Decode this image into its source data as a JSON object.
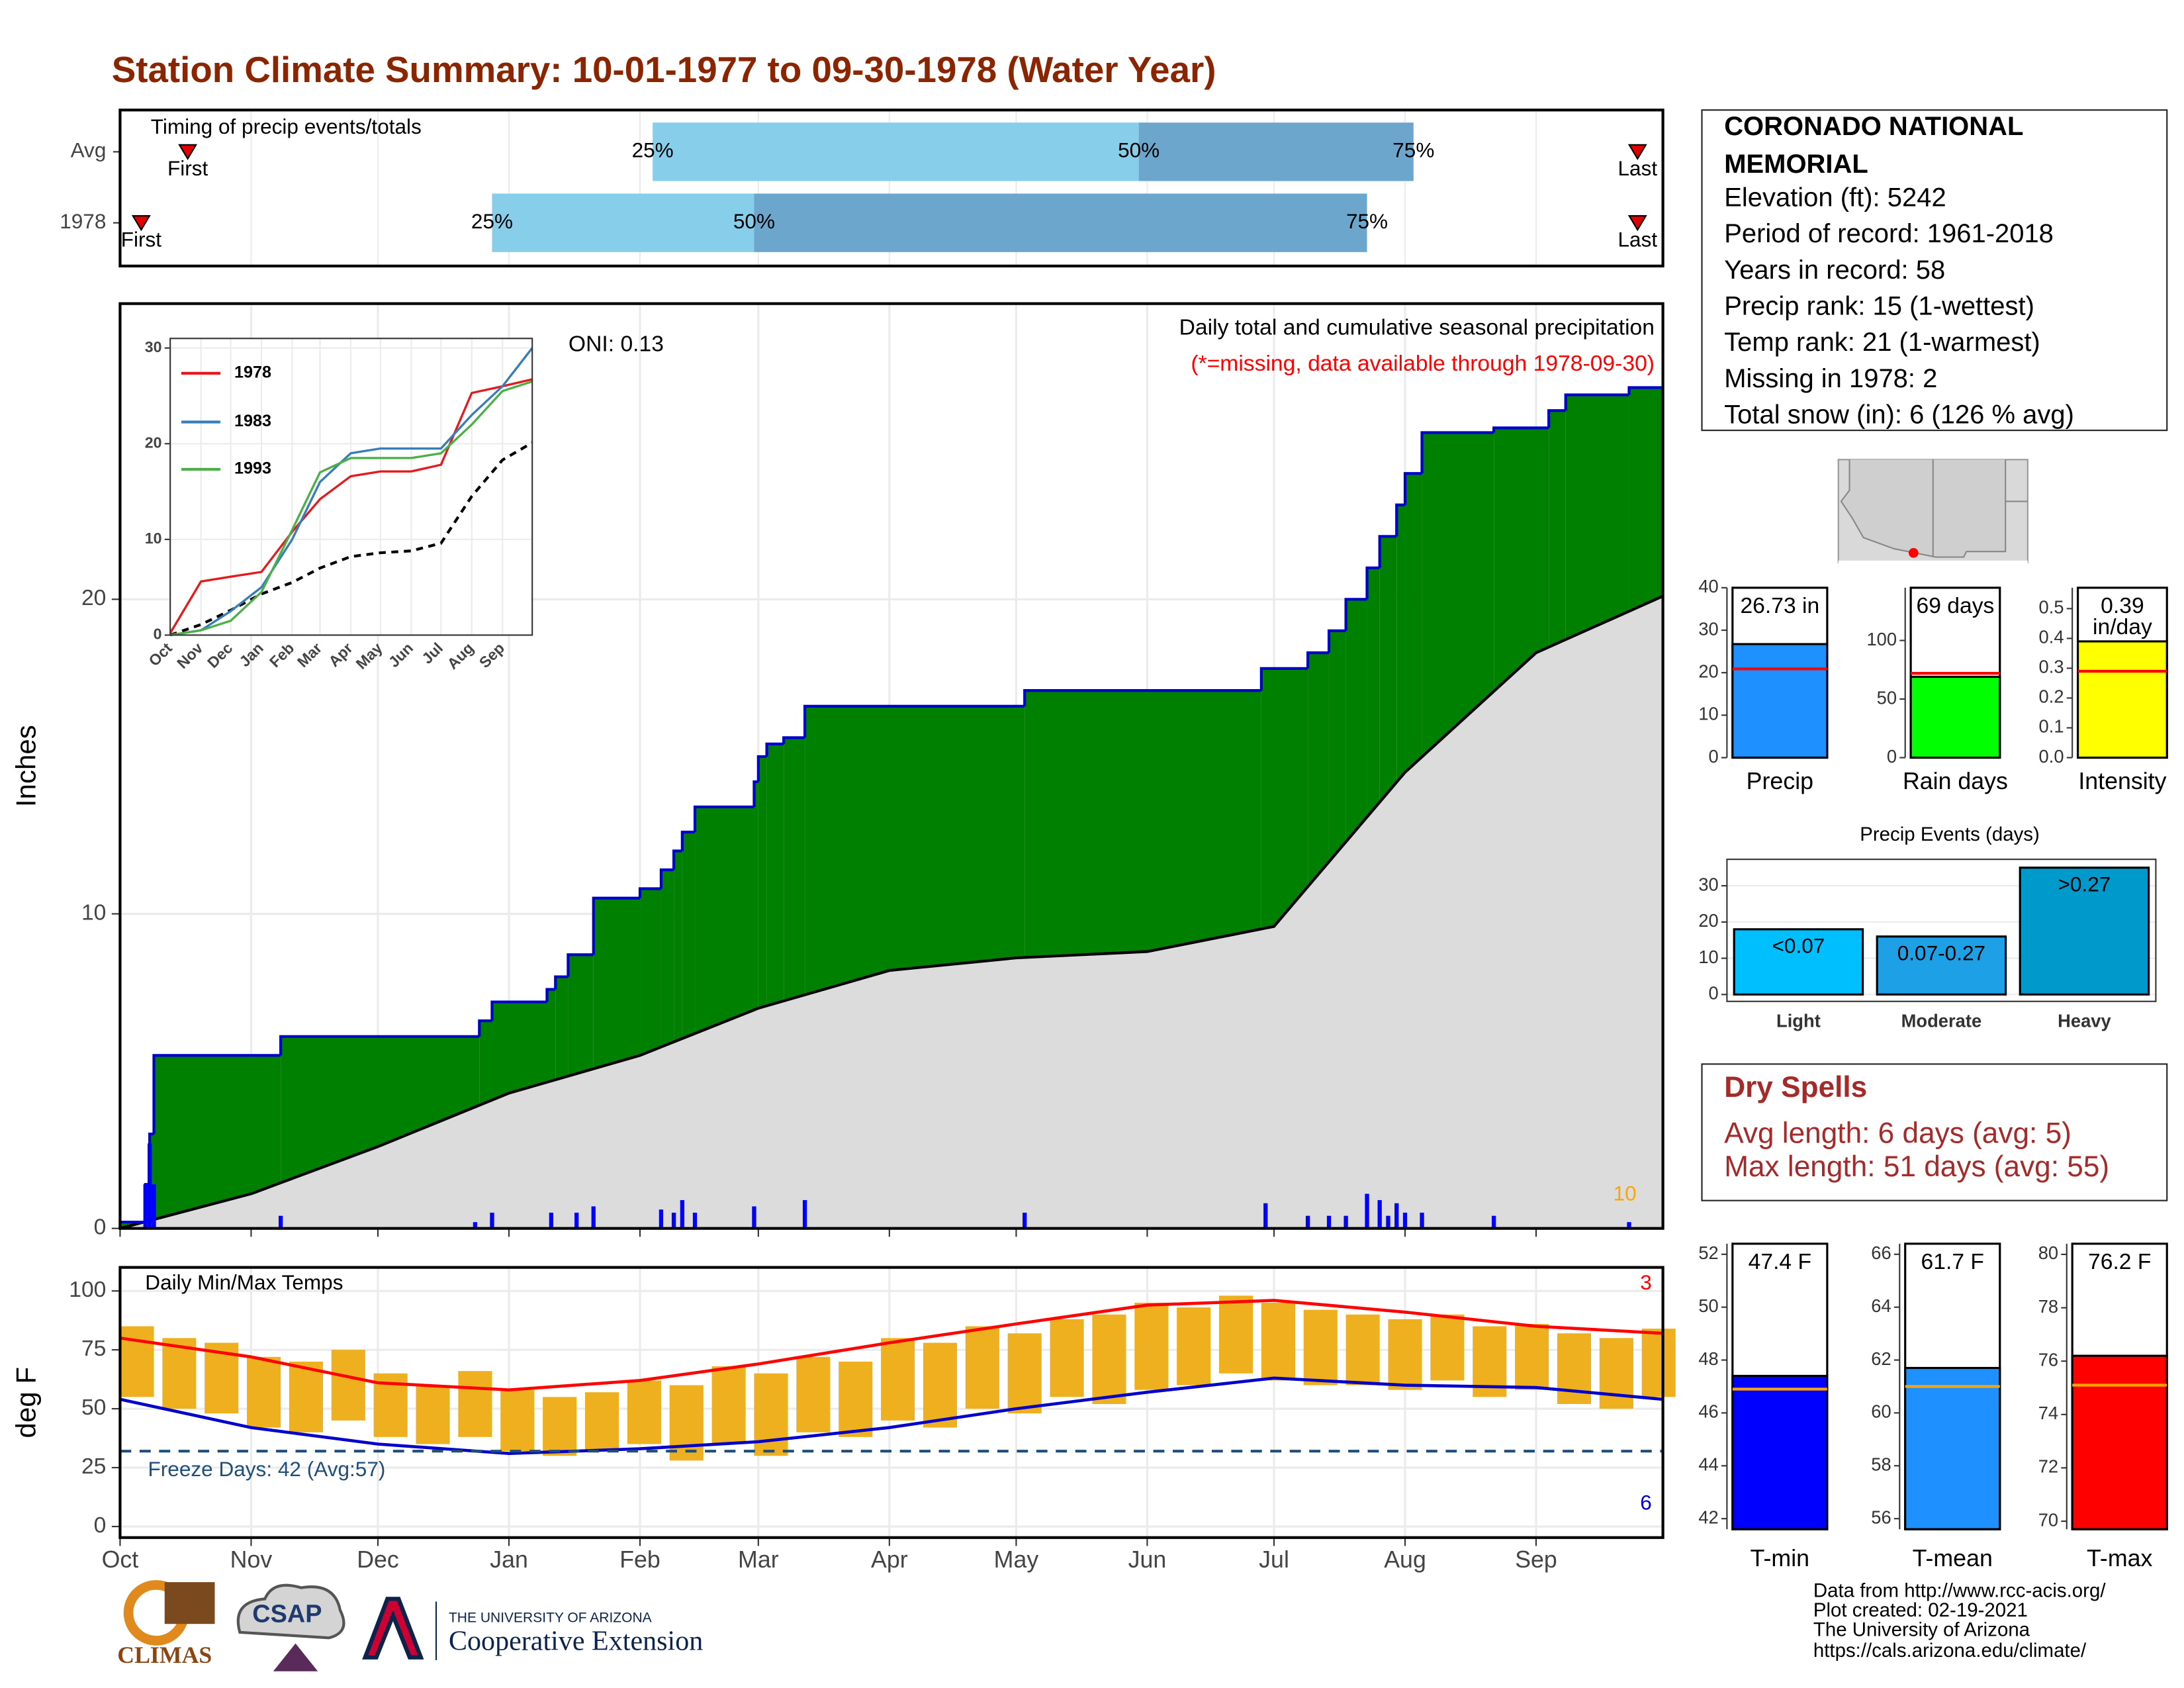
{
  "title": "Station Climate Summary: 10-01-1977 to 09-30-1978 (Water Year)",
  "chart_data": [
    {
      "type": "timing",
      "label": "Timing of precip events/totals",
      "xlim": [
        0,
        365
      ],
      "rows": [
        {
          "name": "Avg",
          "first": 16,
          "last": 359,
          "quartiles": [
            126,
            241,
            306
          ]
        },
        {
          "name": "1978",
          "first": 5,
          "last": 359,
          "quartiles": [
            88,
            150,
            295
          ]
        }
      ],
      "quartile_labels": [
        "25%",
        "50%",
        "75%"
      ],
      "first_label": "First",
      "last_label": "Last",
      "colors": [
        "#87ceeb",
        "#6ca6cd"
      ],
      "marker_color": "#e00000"
    },
    {
      "type": "cumulative_precip",
      "title": "Daily total and cumulative seasonal precipitation",
      "subtitle": "(*=missing, data available through 1978-09-30)",
      "annotation": "ONI: 0.13",
      "corner_label": "10",
      "ylabel": "Inches",
      "xlim": [
        0,
        365
      ],
      "ylim": [
        0,
        29.4
      ],
      "yticks": [
        0,
        10,
        20
      ],
      "grid": true,
      "cumulative": {
        "color": "#008000",
        "edge_color": "#0000cc",
        "x": [
          0,
          6,
          7,
          8,
          38,
          85,
          88,
          101,
          103,
          106,
          112,
          123,
          128,
          131,
          133,
          136,
          150,
          151,
          153,
          157,
          162,
          214,
          270,
          281,
          286,
          290,
          295,
          298,
          302,
          304,
          308,
          325,
          338,
          342,
          357,
          365
        ],
        "values": [
          0.2,
          1.4,
          3.0,
          5.5,
          6.1,
          6.6,
          7.2,
          7.6,
          8.0,
          8.7,
          10.5,
          10.8,
          11.4,
          12.0,
          12.6,
          13.4,
          14.2,
          15.0,
          15.4,
          15.6,
          16.6,
          17.1,
          17.8,
          18.3,
          19.0,
          20.0,
          21.0,
          22.0,
          23.0,
          24.0,
          25.3,
          25.45,
          26.0,
          26.5,
          26.73,
          26.73
        ]
      },
      "average": {
        "color": "#dcdcdc",
        "line_color": "#000000",
        "x": [
          0,
          31,
          61,
          92,
          123,
          151,
          182,
          212,
          243,
          273,
          304,
          335,
          365
        ],
        "values": [
          0,
          1.1,
          2.6,
          4.3,
          5.5,
          7.0,
          8.2,
          8.6,
          8.8,
          9.6,
          14.5,
          18.3,
          20.1
        ]
      },
      "daily": {
        "color": "#0000ff",
        "x": [
          6,
          7,
          8,
          38,
          84,
          88,
          102,
          108,
          112,
          128,
          131,
          133,
          136,
          150,
          162,
          214,
          271,
          281,
          286,
          290,
          295,
          298,
          300,
          302,
          304,
          308,
          325,
          357
        ],
        "values": [
          1.4,
          2.7,
          1.4,
          0.4,
          0.2,
          0.5,
          0.5,
          0.5,
          0.7,
          0.6,
          0.5,
          0.9,
          0.5,
          0.7,
          0.9,
          0.5,
          0.8,
          0.4,
          0.4,
          0.4,
          1.1,
          0.9,
          0.4,
          0.8,
          0.5,
          0.5,
          0.4,
          0.2
        ]
      }
    },
    {
      "type": "line",
      "xlim": [
        0,
        365
      ],
      "ylim": [
        0,
        31
      ],
      "yticks": [
        0,
        10,
        20,
        30
      ],
      "xticks": [
        {
          "value": 0,
          "label": "Oct"
        },
        {
          "value": 31,
          "label": "Nov"
        },
        {
          "value": 61,
          "label": "Dec"
        },
        {
          "value": 92,
          "label": "Jan"
        },
        {
          "value": 123,
          "label": "Feb"
        },
        {
          "value": 151,
          "label": "Mar"
        },
        {
          "value": 182,
          "label": "Apr"
        },
        {
          "value": 212,
          "label": "May"
        },
        {
          "value": 243,
          "label": "Jun"
        },
        {
          "value": 273,
          "label": "Jul"
        },
        {
          "value": 304,
          "label": "Aug"
        },
        {
          "value": 335,
          "label": "Sep"
        }
      ],
      "x": [
        0,
        31,
        61,
        92,
        123,
        151,
        182,
        212,
        243,
        273,
        304,
        335,
        365
      ],
      "series": [
        {
          "name": "1978",
          "color": "#e41a1c",
          "values": [
            0.2,
            5.6,
            6.1,
            6.6,
            10.8,
            14.2,
            16.6,
            17.1,
            17.1,
            17.8,
            25.3,
            26.0,
            26.73
          ]
        },
        {
          "name": "1983",
          "color": "#377eb8",
          "values": [
            0,
            0.5,
            2.5,
            5.0,
            10.0,
            16.0,
            19.0,
            19.5,
            19.5,
            19.5,
            23.0,
            26.0,
            30.0
          ]
        },
        {
          "name": "1993",
          "color": "#4daf4a",
          "values": [
            0,
            0.5,
            1.5,
            4.5,
            11.0,
            17.0,
            18.5,
            18.5,
            18.5,
            19.0,
            22.0,
            25.5,
            26.5
          ]
        }
      ],
      "average": {
        "color": "#000000",
        "dashed": true,
        "values": [
          0,
          1.1,
          2.6,
          4.3,
          5.5,
          7.0,
          8.2,
          8.6,
          8.8,
          9.6,
          14.5,
          18.3,
          20.1
        ]
      }
    },
    {
      "type": "summary_bar",
      "label": "Precip",
      "value": 26.73,
      "value_label": "26.73 in",
      "average": 20.9,
      "color": "#1e90ff",
      "average_color": "#ff0000",
      "ylim": [
        0,
        40
      ],
      "yticks": [
        0,
        10,
        20,
        30,
        40
      ]
    },
    {
      "type": "summary_bar",
      "label": "Rain days",
      "value": 69,
      "value_label": "69 days",
      "average": 72,
      "color": "#00ff00",
      "average_color": "#ff0000",
      "ylim": [
        0,
        145
      ],
      "yticks": [
        0,
        50,
        100
      ]
    },
    {
      "type": "summary_bar",
      "label": "Intensity",
      "value": 0.39,
      "value_label": "0.39",
      "unit_label": "in/day",
      "average": 0.29,
      "color": "#ffff00",
      "average_color": "#ff0000",
      "ylim": [
        0,
        0.57
      ],
      "yticks": [
        {
          "value": 0,
          "label": "0.0"
        },
        0.1,
        0.2,
        0.3,
        0.4,
        0.5
      ]
    },
    {
      "type": "bar",
      "title": "Precip Events (days)",
      "categories": [
        "Light",
        "Moderate",
        "Heavy"
      ],
      "values": [
        18,
        16,
        35
      ],
      "bar_labels": [
        "<0.07",
        "0.07-0.27",
        ">0.27"
      ],
      "colors": [
        "#00bfff",
        "#1ea0e6",
        "#0099cc"
      ],
      "ylim": [
        -1.9,
        37.3
      ],
      "yticks": [
        0,
        10,
        20,
        30
      ],
      "grid": true
    },
    {
      "type": "temperature",
      "label": "Daily Min/Max Temps",
      "ylabel": "deg F",
      "xlim": [
        0,
        365
      ],
      "ylim": [
        -4.7,
        110
      ],
      "yticks": [
        0,
        25,
        50,
        75,
        100
      ],
      "grid": true,
      "xticks": [
        {
          "value": 0,
          "label": "Oct"
        },
        {
          "value": 31,
          "label": "Nov"
        },
        {
          "value": 61,
          "label": "Dec"
        },
        {
          "value": 92,
          "label": "Jan"
        },
        {
          "value": 123,
          "label": "Feb"
        },
        {
          "value": 151,
          "label": "Mar"
        },
        {
          "value": 182,
          "label": "Apr"
        },
        {
          "value": 212,
          "label": "May"
        },
        {
          "value": 243,
          "label": "Jun"
        },
        {
          "value": 273,
          "label": "Jul"
        },
        {
          "value": 304,
          "label": "Aug"
        },
        {
          "value": 335,
          "label": "Sep"
        }
      ],
      "x": [
        0,
        10,
        20,
        30,
        40,
        50,
        60,
        70,
        80,
        90,
        100,
        110,
        120,
        130,
        140,
        150,
        160,
        170,
        180,
        190,
        200,
        210,
        220,
        230,
        240,
        250,
        260,
        270,
        280,
        290,
        300,
        310,
        320,
        330,
        340,
        350,
        360
      ],
      "max": [
        85,
        80,
        78,
        72,
        70,
        75,
        65,
        60,
        66,
        58,
        55,
        57,
        62,
        60,
        68,
        65,
        72,
        70,
        80,
        78,
        85,
        82,
        88,
        90,
        95,
        93,
        98,
        95,
        92,
        90,
        88,
        90,
        85,
        86,
        82,
        80,
        84
      ],
      "min": [
        55,
        50,
        48,
        42,
        40,
        45,
        38,
        35,
        38,
        32,
        30,
        32,
        35,
        28,
        35,
        30,
        40,
        38,
        45,
        42,
        50,
        48,
        55,
        52,
        58,
        60,
        65,
        62,
        60,
        60,
        58,
        62,
        55,
        58,
        52,
        50,
        55
      ],
      "bar_color": "#efb020",
      "avg_x": [
        0,
        31,
        61,
        92,
        123,
        151,
        182,
        212,
        243,
        273,
        304,
        335,
        365
      ],
      "avg_max": {
        "color": "#ff0000",
        "values": [
          80,
          72,
          61,
          58,
          62,
          69,
          78,
          86,
          94,
          96,
          91,
          85,
          82
        ]
      },
      "avg_min": {
        "color": "#0000cc",
        "values": [
          54,
          42,
          35,
          31,
          33,
          36,
          42,
          50,
          57,
          63,
          60,
          59,
          54
        ]
      },
      "freeze": {
        "value": 32,
        "label": "Freeze Days: 42 (Avg:57)",
        "color": "#1f4e79"
      },
      "corner_labels": [
        {
          "text": "3",
          "color": "#ff0000"
        },
        {
          "text": "6",
          "color": "#0000cc"
        }
      ]
    },
    {
      "type": "summary_bar",
      "label": "T-min",
      "value": 47.4,
      "value_label": "47.4 F",
      "average": 46.9,
      "color": "#0000ff",
      "average_color": "#ffa500",
      "ylim": [
        41.6,
        52.4
      ],
      "yticks": [
        42,
        44,
        46,
        48,
        50,
        52
      ]
    },
    {
      "type": "summary_bar",
      "label": "T-mean",
      "value": 61.7,
      "value_label": "61.7 F",
      "average": 61.0,
      "color": "#1e90ff",
      "average_color": "#ffa500",
      "ylim": [
        55.6,
        66.4
      ],
      "yticks": [
        56,
        58,
        60,
        62,
        64,
        66
      ]
    },
    {
      "type": "summary_bar",
      "label": "T-max",
      "value": 76.2,
      "value_label": "76.2 F",
      "average": 75.1,
      "color": "#ff0000",
      "average_color": "#ffa500",
      "ylim": [
        69.7,
        80.4
      ],
      "yticks": [
        70,
        72,
        74,
        76,
        78,
        80
      ]
    }
  ],
  "station": {
    "name_lines": [
      "CORONADO NATIONAL",
      "MEMORIAL"
    ],
    "lines": [
      "Elevation (ft): 5242",
      "Period of record: 1961-2018",
      "Years in record: 58",
      "Precip rank: 15 (1-wettest)",
      "Temp rank: 21 (1-warmest)",
      "Missing in 1978: 2",
      "Total snow (in): 6 (126 % avg)"
    ]
  },
  "dry_spells": {
    "title": "Dry Spells",
    "lines": [
      "Avg length: 6 days (avg: 5)",
      "Max length: 51 days (avg: 55)"
    ]
  },
  "footer": {
    "logos": [
      "CLIMAS",
      "CSAP",
      "THE UNIVERSITY OF ARIZONA",
      "Cooperative Extension"
    ],
    "credits": [
      "Data from http://www.rcc-acis.org/",
      "Plot created: 02-19-2021",
      "The University of Arizona",
      "https://cals.arizona.edu/climate/"
    ]
  }
}
